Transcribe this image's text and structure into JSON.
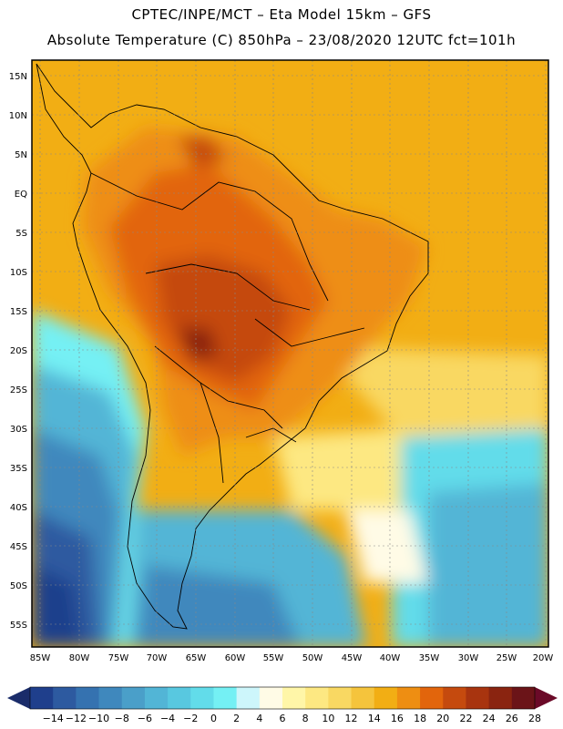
{
  "header": {
    "line1": "CPTEC/INPE/MCT –  Eta Model 15km – GFS",
    "line2": "Absolute Temperature (C) 850hPa – 23/08/2020 12UTC fct=101h"
  },
  "axes": {
    "lat_labels": [
      "15N",
      "10N",
      "5N",
      "EQ",
      "5S",
      "10S",
      "15S",
      "20S",
      "25S",
      "30S",
      "35S",
      "40S",
      "45S",
      "50S",
      "55S"
    ],
    "lon_labels": [
      "85W",
      "80W",
      "75W",
      "70W",
      "65W",
      "60W",
      "55W",
      "50W",
      "45W",
      "40W",
      "35W",
      "30W",
      "25W",
      "20W"
    ]
  },
  "colorbar": {
    "labels": [
      "−14",
      "−12",
      "−10",
      "−8",
      "−6",
      "−4",
      "−2",
      "0",
      "2",
      "4",
      "6",
      "8",
      "10",
      "12",
      "14",
      "16",
      "18",
      "20",
      "22",
      "24",
      "26",
      "28"
    ],
    "colors": [
      "#1f3f8c",
      "#2d5aa0",
      "#3572b0",
      "#3f88bd",
      "#4a9fc9",
      "#52b5d6",
      "#58c8e0",
      "#62dcea",
      "#74f0f4",
      "#cdf6fb",
      "#fffbe6",
      "#fff6a8",
      "#fde882",
      "#f9d862",
      "#f5c43c",
      "#f2ae14",
      "#ee8e12",
      "#e2650c",
      "#c54a0e",
      "#a8340f",
      "#8a2410",
      "#6b1418"
    ],
    "end_low": "#1a2c6a",
    "end_high": "#6b0a28"
  }
}
